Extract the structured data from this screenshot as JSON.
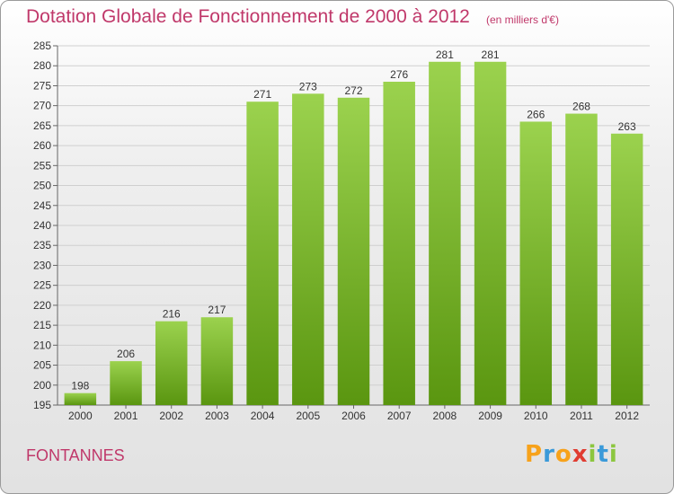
{
  "title": "Dotation Globale de Fonctionnement de 2000 à 2012",
  "unit_note": "(en milliers d'€)",
  "commune": "FONTANNES",
  "logo": {
    "letters": [
      "P",
      "r",
      "o",
      "x",
      "i",
      "t",
      "i"
    ],
    "colors": [
      "#f7a21b",
      "#3a9ad9",
      "#f7a21b",
      "#e03c31",
      "#8cc63f",
      "#3a9ad9",
      "#8cc63f"
    ]
  },
  "colors": {
    "bar_top": "#9bd24e",
    "bar_bottom": "#5a9610",
    "title": "#c0386a"
  },
  "chart_data": {
    "type": "bar",
    "title": "Dotation Globale de Fonctionnement de 2000 à 2012",
    "xlabel": "",
    "ylabel": "",
    "ylim": [
      195,
      285
    ],
    "ytick_step": 5,
    "grid": true,
    "categories": [
      "2000",
      "2001",
      "2002",
      "2003",
      "2004",
      "2005",
      "2006",
      "2007",
      "2008",
      "2009",
      "2010",
      "2011",
      "2012"
    ],
    "values": [
      198,
      206,
      216,
      217,
      271,
      273,
      272,
      276,
      281,
      281,
      266,
      268,
      263
    ]
  }
}
